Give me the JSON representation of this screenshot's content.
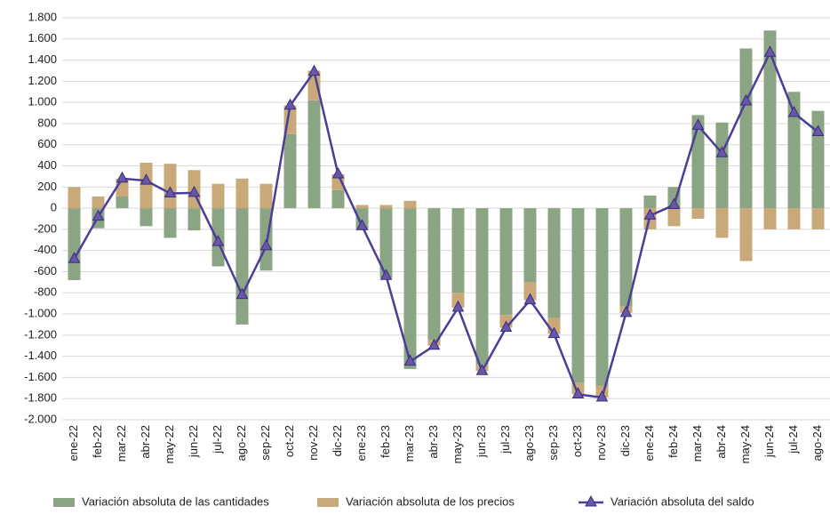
{
  "chart_data": {
    "type": "stacked-bar-line",
    "categories": [
      "ene-22",
      "feb-22",
      "mar-22",
      "abr-22",
      "may-22",
      "jun-22",
      "jul-22",
      "ago-22",
      "sep-22",
      "oct-22",
      "nov-22",
      "dic-22",
      "ene-23",
      "feb-23",
      "mar-23",
      "abr-23",
      "may-23",
      "jun-23",
      "jul-23",
      "ago-23",
      "sep-23",
      "oct-23",
      "nov-23",
      "dic-23",
      "ene-24",
      "feb-24",
      "mar-24",
      "abr-24",
      "may-24",
      "jun-24",
      "jul-24",
      "ago-24"
    ],
    "series": [
      {
        "name": "Variación absoluta de las cantidades",
        "kind": "bar",
        "color": "#8ba584",
        "values": [
          -680,
          -190,
          110,
          -170,
          -280,
          -210,
          -550,
          -1100,
          -590,
          700,
          1020,
          170,
          -200,
          -660,
          -1520,
          -1250,
          -800,
          -1480,
          -1010,
          -700,
          -1040,
          -1650,
          -1680,
          -930,
          120,
          200,
          880,
          810,
          1510,
          1680,
          1100,
          920
        ]
      },
      {
        "name": "Variación absoluta de los precios",
        "kind": "bar",
        "color": "#c9a97a",
        "values": [
          200,
          110,
          170,
          430,
          420,
          360,
          230,
          280,
          230,
          270,
          280,
          150,
          30,
          30,
          70,
          -50,
          -140,
          -60,
          -120,
          -170,
          -150,
          -110,
          -110,
          -60,
          -200,
          -170,
          -100,
          -280,
          -500,
          -200,
          -200,
          -200
        ]
      },
      {
        "name": "Variación absoluta del saldo",
        "kind": "line",
        "color": "#4a3f97",
        "values": [
          -480,
          -80,
          280,
          260,
          140,
          145,
          -320,
          -820,
          -360,
          970,
          1290,
          320,
          -170,
          -640,
          -1450,
          -1300,
          -940,
          -1540,
          -1130,
          -870,
          -1190,
          -1760,
          -1790,
          -990,
          -70,
          30,
          780,
          520,
          1010,
          1470,
          900,
          720
        ]
      }
    ],
    "ylim": [
      -2000,
      1800
    ],
    "yticks": [
      {
        "value": -2000,
        "label": "-2.000"
      },
      {
        "value": -1800,
        "label": "-1.800"
      },
      {
        "value": -1600,
        "label": "-1.600"
      },
      {
        "value": -1400,
        "label": "-1.400"
      },
      {
        "value": -1200,
        "label": "-1.200"
      },
      {
        "value": -1000,
        "label": "-1.000"
      },
      {
        "value": -800,
        "label": "-800"
      },
      {
        "value": -600,
        "label": "-600"
      },
      {
        "value": -400,
        "label": "-400"
      },
      {
        "value": -200,
        "label": "-200"
      },
      0,
      200,
      400,
      600,
      800,
      {
        "value": 1000,
        "label": "1.000"
      },
      {
        "value": 1200,
        "label": "1.200"
      },
      {
        "value": 1400,
        "label": "1.400"
      },
      {
        "value": 1600,
        "label": "1.600"
      },
      {
        "value": 1800,
        "label": "1.800"
      }
    ],
    "grid": true
  }
}
